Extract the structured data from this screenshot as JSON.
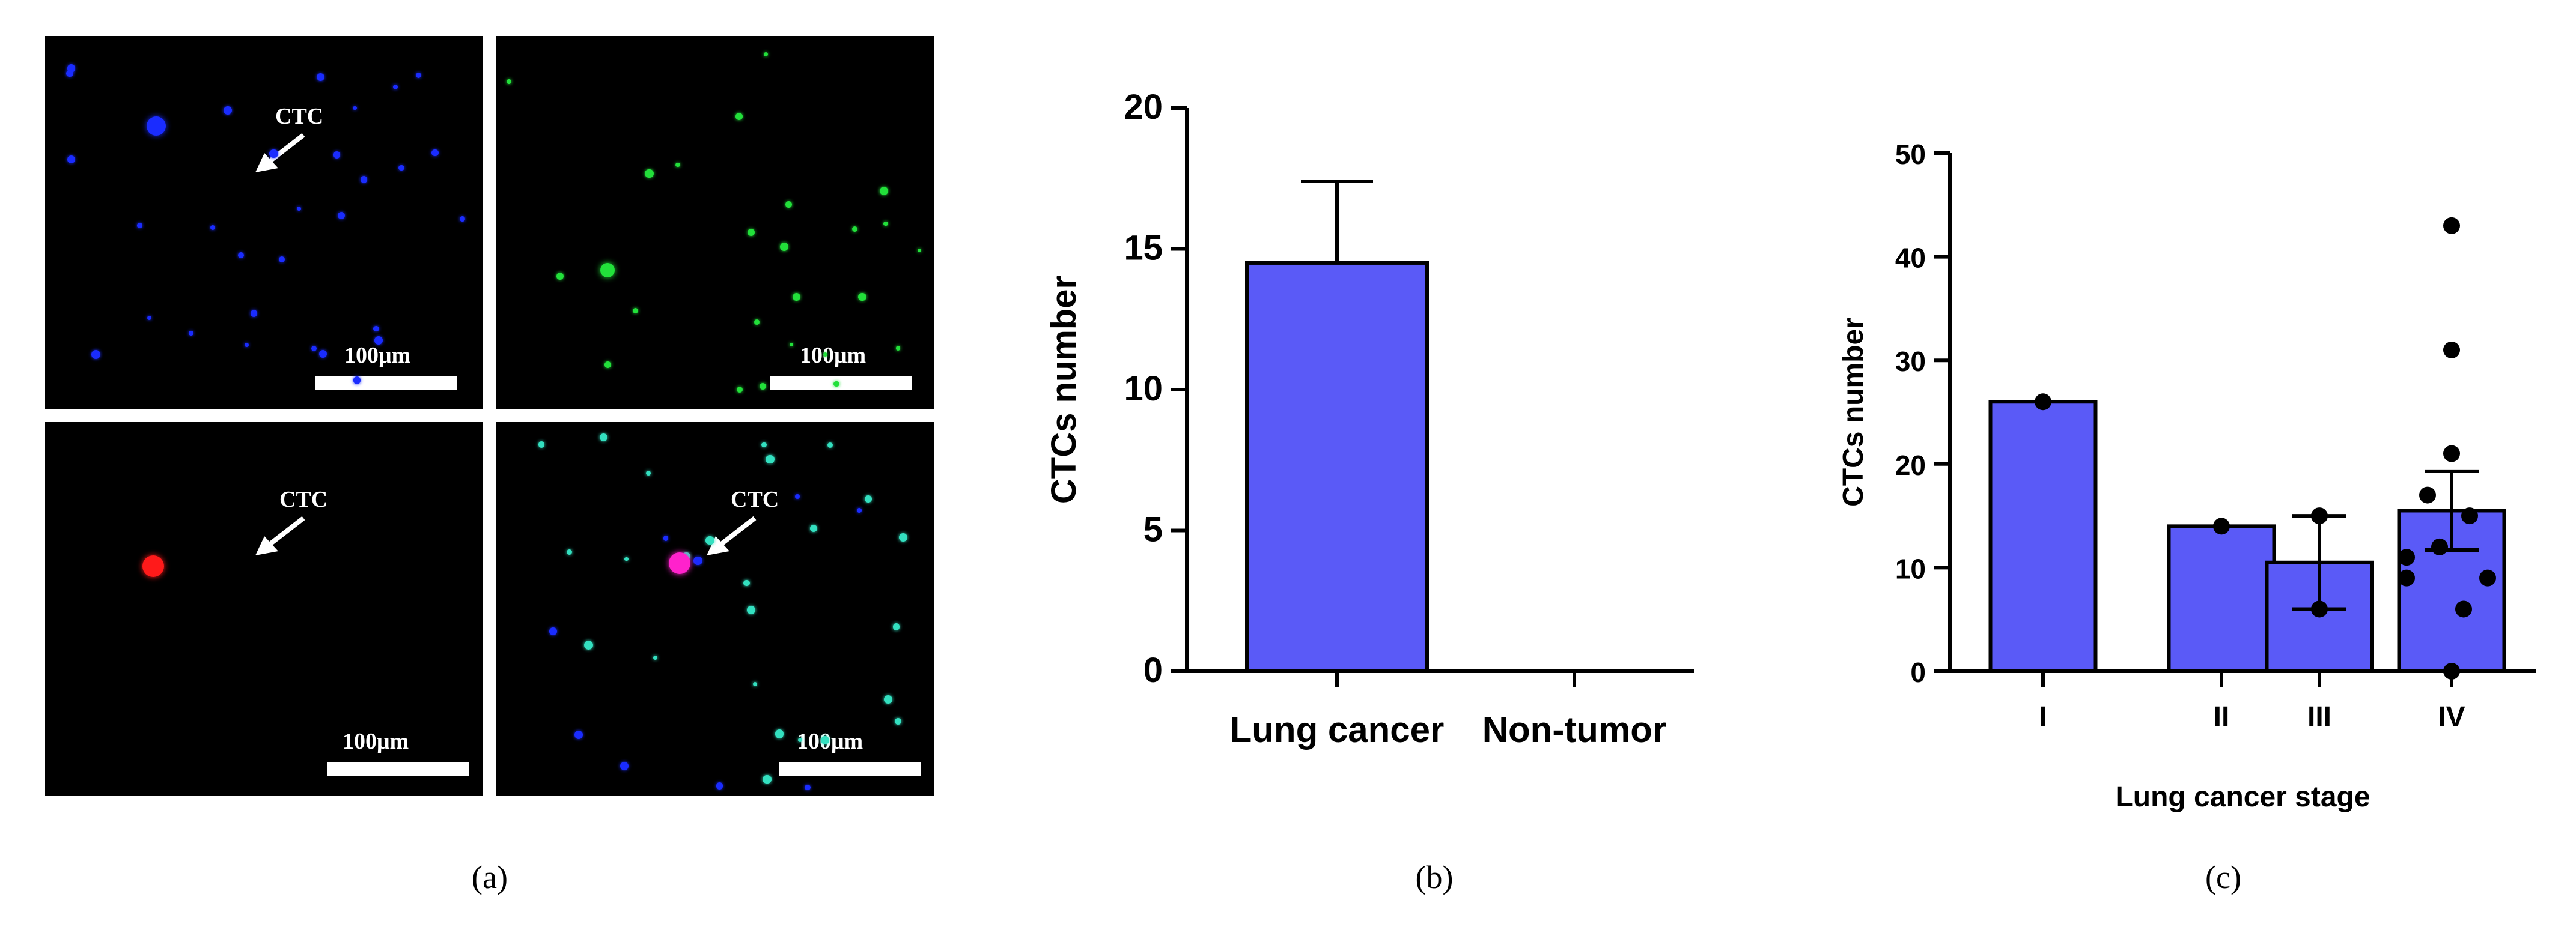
{
  "figure_a": {
    "panels": [
      {
        "id": "blue",
        "ctc_label": "CTC",
        "scale_label": "100μm"
      },
      {
        "id": "green",
        "ctc_label": "",
        "scale_label": "100μm"
      },
      {
        "id": "red",
        "ctc_label": "CTC",
        "scale_label": "100μm"
      },
      {
        "id": "merge",
        "ctc_label": "CTC",
        "scale_label": "100μm"
      }
    ],
    "colors": {
      "blue": "#1a2cff",
      "green": "#22e03a",
      "red": "#ff1a1a",
      "merge": "#ff22cc",
      "cyan": "#33e0c0"
    }
  },
  "captions": {
    "a": "(a)",
    "b": "(b)",
    "c": "(c)"
  },
  "chart_data": [
    {
      "type": "bar",
      "categories": [
        "Lung cancer",
        "Non-tumor"
      ],
      "values": [
        14.5,
        0
      ],
      "error": [
        2.9,
        0
      ],
      "ylabel": "CTCs number",
      "xlabel": "",
      "ylim": [
        0,
        20
      ],
      "yticks": [
        0,
        5,
        10,
        15,
        20
      ],
      "bar_color": "#5a5af7"
    },
    {
      "type": "bar",
      "categories": [
        "I",
        "II",
        "III",
        "IV"
      ],
      "values": [
        26,
        14,
        10.5,
        15.5
      ],
      "error": [
        0,
        0,
        4.5,
        3.8
      ],
      "points": [
        [
          26
        ],
        [
          14
        ],
        [
          15,
          6
        ],
        [
          43,
          31,
          21,
          17,
          15,
          12,
          11,
          9,
          9,
          6,
          0
        ]
      ],
      "ylabel": "CTCs number",
      "xlabel": "Lung cancer stage",
      "ylim": [
        0,
        50
      ],
      "yticks": [
        0,
        10,
        20,
        30,
        40,
        50
      ],
      "bar_color": "#5a5af7"
    }
  ]
}
